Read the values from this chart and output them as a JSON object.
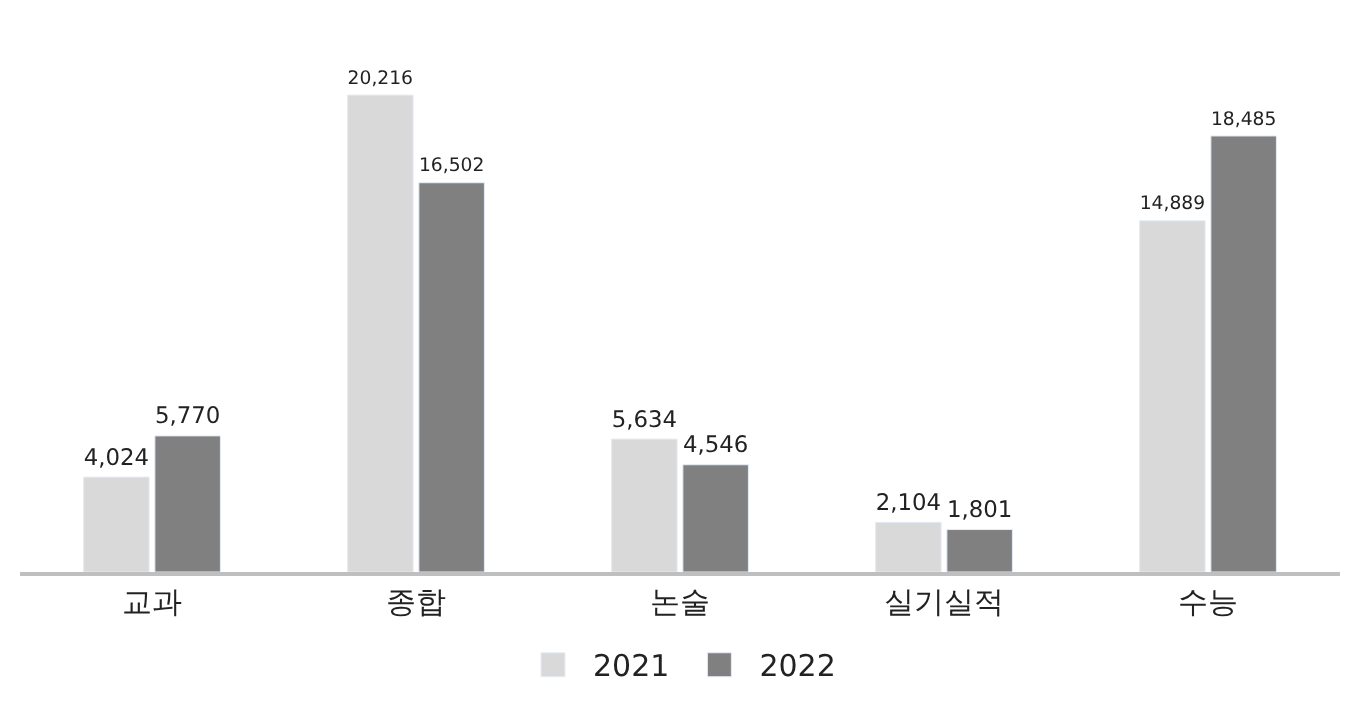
{
  "chart_data": {
    "type": "bar",
    "categories": [
      "교과",
      "종합",
      "논술",
      "실기실적",
      "수능"
    ],
    "series": [
      {
        "name": "2021",
        "color": "#d9d9d9",
        "values": [
          4024,
          20216,
          5634,
          2104,
          14889
        ],
        "value_labels": [
          "4,024",
          "20,216",
          "5,634",
          "2,104",
          "14,889"
        ]
      },
      {
        "name": "2022",
        "color": "#808080",
        "values": [
          5770,
          16502,
          4546,
          1801,
          18485
        ],
        "value_labels": [
          "5,770",
          "16,502",
          "4,546",
          "1,801",
          "18,485"
        ]
      }
    ],
    "legend": "bottom",
    "tick_labels": "x"
  }
}
